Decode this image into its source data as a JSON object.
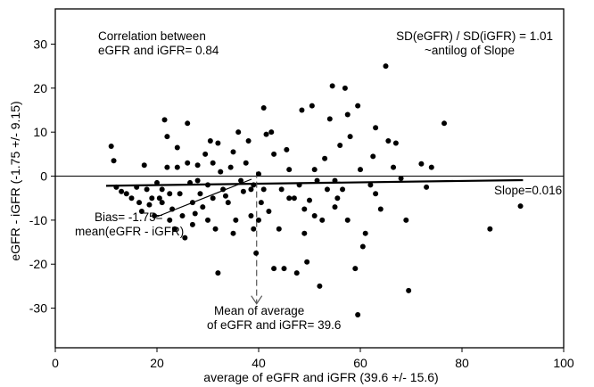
{
  "chart_data": {
    "type": "scatter",
    "xlabel": "average of eGFR and iGFR (39.6 +/- 15.6)",
    "ylabel": "eGFR - iGFR (-1.75 +/- 9.15)",
    "xlim": [
      0,
      100
    ],
    "ylim": [
      -39,
      38
    ],
    "xticks": [
      0,
      20,
      40,
      60,
      80,
      100
    ],
    "yticks": [
      -30,
      -20,
      -10,
      0,
      10,
      20,
      30
    ],
    "grid": false,
    "legend": "none",
    "zero_line": 0,
    "regression_line": {
      "x": [
        10,
        92
      ],
      "y": [
        -2.2,
        -0.9
      ]
    },
    "mean_avg_marker": {
      "x": 39.6,
      "y_from": 1,
      "y_to": -29
    },
    "series": [
      {
        "values": [
          [
            11,
            6.8
          ],
          [
            11.5,
            3.5
          ],
          [
            12,
            -2.5
          ],
          [
            13,
            -3.5
          ],
          [
            14,
            -4
          ],
          [
            15,
            -5
          ],
          [
            16,
            -2.5
          ],
          [
            16.5,
            -6
          ],
          [
            17,
            -8
          ],
          [
            17.5,
            2.5
          ],
          [
            18,
            -3
          ],
          [
            18.5,
            -6.5
          ],
          [
            19,
            -5
          ],
          [
            19.5,
            -9
          ],
          [
            20,
            -1.5
          ],
          [
            20.5,
            -5
          ],
          [
            21,
            -3
          ],
          [
            21,
            -6
          ],
          [
            21.5,
            12.8
          ],
          [
            22,
            9
          ],
          [
            22,
            2
          ],
          [
            22.5,
            -4
          ],
          [
            22.5,
            -10
          ],
          [
            23,
            -7.5
          ],
          [
            23.5,
            -12
          ],
          [
            24,
            6.5
          ],
          [
            24,
            2
          ],
          [
            24.5,
            -4
          ],
          [
            25,
            -9
          ],
          [
            25.5,
            -14
          ],
          [
            26,
            12
          ],
          [
            26,
            3
          ],
          [
            26.5,
            -1.5
          ],
          [
            27,
            -6
          ],
          [
            27,
            -11
          ],
          [
            27.5,
            -8.5
          ],
          [
            28,
            -1
          ],
          [
            28,
            2.5
          ],
          [
            28.5,
            -4
          ],
          [
            29,
            -7
          ],
          [
            29.5,
            5
          ],
          [
            30,
            -2
          ],
          [
            30,
            -10
          ],
          [
            30.5,
            8
          ],
          [
            31,
            3
          ],
          [
            31,
            -5
          ],
          [
            31.5,
            -12
          ],
          [
            32,
            -22
          ],
          [
            32,
            7.5
          ],
          [
            32.5,
            1
          ],
          [
            33,
            -3
          ],
          [
            33.5,
            -4.5
          ],
          [
            34,
            -6
          ],
          [
            34.5,
            2
          ],
          [
            35,
            5.5
          ],
          [
            35,
            -13
          ],
          [
            35.5,
            -10
          ],
          [
            36,
            10
          ],
          [
            36.5,
            -1
          ],
          [
            37,
            -3.5
          ],
          [
            37.5,
            3
          ],
          [
            38,
            8
          ],
          [
            38.5,
            -3
          ],
          [
            38.5,
            -9
          ],
          [
            39,
            -2
          ],
          [
            39,
            -12
          ],
          [
            39.5,
            -17.5
          ],
          [
            40,
            0.5
          ],
          [
            40,
            -10
          ],
          [
            40.5,
            -6
          ],
          [
            41,
            15.5
          ],
          [
            41,
            -3
          ],
          [
            41.5,
            9.5
          ],
          [
            42,
            -8
          ],
          [
            42.5,
            10
          ],
          [
            43,
            -21
          ],
          [
            43,
            5
          ],
          [
            44,
            -12
          ],
          [
            44.5,
            -3
          ],
          [
            45,
            -21
          ],
          [
            45.5,
            6
          ],
          [
            46,
            -5
          ],
          [
            46,
            1.5
          ],
          [
            47,
            -5
          ],
          [
            47.5,
            -22
          ],
          [
            48,
            -2
          ],
          [
            48.5,
            15
          ],
          [
            49,
            -7.5
          ],
          [
            49,
            -13
          ],
          [
            49.5,
            -19.5
          ],
          [
            50,
            -5.5
          ],
          [
            50.5,
            16
          ],
          [
            51,
            -9
          ],
          [
            51,
            1.5
          ],
          [
            51.5,
            -1
          ],
          [
            52,
            -25
          ],
          [
            52.5,
            -10
          ],
          [
            53,
            4
          ],
          [
            53.5,
            -3
          ],
          [
            54,
            13
          ],
          [
            54.5,
            20.5
          ],
          [
            55,
            -1
          ],
          [
            55,
            -7
          ],
          [
            55.5,
            -5
          ],
          [
            56,
            7
          ],
          [
            56.5,
            -3
          ],
          [
            57,
            20
          ],
          [
            57.5,
            -10
          ],
          [
            57.5,
            14
          ],
          [
            58,
            9
          ],
          [
            59,
            -21
          ],
          [
            59.5,
            -31.5
          ],
          [
            59.5,
            16
          ],
          [
            60,
            1.5
          ],
          [
            60.5,
            -16
          ],
          [
            61,
            -13
          ],
          [
            62,
            -2
          ],
          [
            62.5,
            4.5
          ],
          [
            63,
            11
          ],
          [
            63,
            -4
          ],
          [
            64,
            -7.5
          ],
          [
            65,
            25
          ],
          [
            65.5,
            8
          ],
          [
            66.5,
            2
          ],
          [
            67,
            7.5
          ],
          [
            68,
            -0.5
          ],
          [
            69,
            -10
          ],
          [
            69.5,
            -26
          ],
          [
            72,
            2.8
          ],
          [
            73,
            -2.5
          ],
          [
            74,
            2
          ],
          [
            76.5,
            12
          ],
          [
            85.5,
            -12
          ],
          [
            91.5,
            -6.8
          ]
        ]
      }
    ],
    "annotations": [
      {
        "line1": "Correlation between",
        "line2": "eGFR and iGFR= 0.84"
      },
      {
        "line1": "SD(eGFR) / SD(iGFR) = 1.01",
        "line2": "~antilog of Slope"
      },
      {
        "line1": "Slope=0.016"
      },
      {
        "line1": "Bias= -1.75=",
        "line2": "mean(eGFR - iGFR)"
      },
      {
        "line1": "Mean of average",
        "line2": "of eGFR and iGFR= 39.6"
      }
    ]
  }
}
